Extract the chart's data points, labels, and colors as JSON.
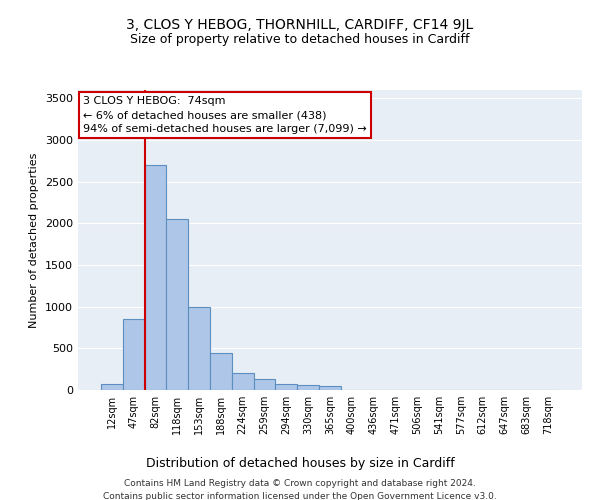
{
  "title": "3, CLOS Y HEBOG, THORNHILL, CARDIFF, CF14 9JL",
  "subtitle": "Size of property relative to detached houses in Cardiff",
  "xlabel": "Distribution of detached houses by size in Cardiff",
  "ylabel": "Number of detached properties",
  "bin_labels": [
    "12sqm",
    "47sqm",
    "82sqm",
    "118sqm",
    "153sqm",
    "188sqm",
    "224sqm",
    "259sqm",
    "294sqm",
    "330sqm",
    "365sqm",
    "400sqm",
    "436sqm",
    "471sqm",
    "506sqm",
    "541sqm",
    "577sqm",
    "612sqm",
    "647sqm",
    "683sqm",
    "718sqm"
  ],
  "bar_values": [
    70,
    850,
    2700,
    2050,
    1000,
    450,
    200,
    130,
    70,
    60,
    45,
    0,
    0,
    0,
    0,
    0,
    0,
    0,
    0,
    0,
    0
  ],
  "bar_color": "#aec6e8",
  "bar_edge_color": "#5a8fc0",
  "vline_color": "#cc0000",
  "annotation_box_text": "3 CLOS Y HEBOG:  74sqm\n← 6% of detached houses are smaller (438)\n94% of semi-detached houses are larger (7,099) →",
  "ylim": [
    0,
    3600
  ],
  "yticks": [
    0,
    500,
    1000,
    1500,
    2000,
    2500,
    3000,
    3500
  ],
  "background_color": "#e8eef5",
  "footer_line1": "Contains HM Land Registry data © Crown copyright and database right 2024.",
  "footer_line2": "Contains public sector information licensed under the Open Government Licence v3.0.",
  "title_fontsize": 10,
  "subtitle_fontsize": 9
}
